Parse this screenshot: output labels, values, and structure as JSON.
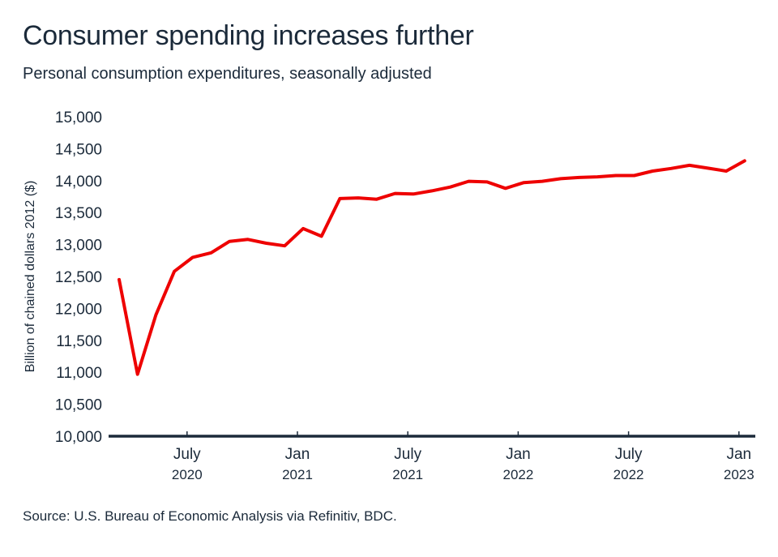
{
  "header": {
    "title": "Consumer spending increases further",
    "subtitle": "Personal consumption expenditures, seasonally adjusted"
  },
  "footer": {
    "source": "Source: U.S. Bureau of Economic Analysis via Refinitiv, BDC."
  },
  "colors": {
    "line": "#ee0000",
    "axis": "#1b2a3a",
    "text": "#1b2a3a"
  },
  "chart_data": {
    "type": "line",
    "title": "Consumer spending increases further",
    "subtitle": "Personal consumption expenditures, seasonally adjusted",
    "xlabel": "",
    "ylabel": "Billion of chained dollars 2012 ($)",
    "ylim": [
      10000,
      15000
    ],
    "yticks": [
      10000,
      10500,
      11000,
      11500,
      12000,
      12500,
      13000,
      13500,
      14000,
      14500,
      15000
    ],
    "ytick_labels": [
      "10,000",
      "10,500",
      "11,000",
      "11,500",
      "12,000",
      "12,500",
      "13,000",
      "13,500",
      "14,000",
      "14,500",
      "15,000"
    ],
    "xticks": [
      {
        "index": 4,
        "month": "July",
        "year": "2020"
      },
      {
        "index": 10,
        "month": "Jan",
        "year": "2021"
      },
      {
        "index": 16,
        "month": "July",
        "year": "2021"
      },
      {
        "index": 22,
        "month": "Jan",
        "year": "2022"
      },
      {
        "index": 28,
        "month": "July",
        "year": "2022"
      },
      {
        "index": 34,
        "month": "Jan",
        "year": "2023"
      }
    ],
    "grid": false,
    "legend": "none",
    "x": [
      "2020-03",
      "2020-04",
      "2020-05",
      "2020-06",
      "2020-07",
      "2020-08",
      "2020-09",
      "2020-10",
      "2020-11",
      "2020-12",
      "2021-01",
      "2021-02",
      "2021-03",
      "2021-04",
      "2021-05",
      "2021-06",
      "2021-07",
      "2021-08",
      "2021-09",
      "2021-10",
      "2021-11",
      "2021-12",
      "2022-01",
      "2022-02",
      "2022-03",
      "2022-04",
      "2022-05",
      "2022-06",
      "2022-07",
      "2022-08",
      "2022-09",
      "2022-10",
      "2022-11",
      "2022-12",
      "2023-01"
    ],
    "series": [
      {
        "name": "Personal consumption expenditures",
        "values": [
          12450,
          10970,
          11900,
          12580,
          12800,
          12870,
          13050,
          13080,
          13020,
          12980,
          13250,
          13130,
          13720,
          13730,
          13710,
          13800,
          13790,
          13840,
          13900,
          13990,
          13980,
          13880,
          13970,
          13990,
          14030,
          14050,
          14060,
          14080,
          14080,
          14150,
          14190,
          14240,
          14195,
          14150,
          14310
        ]
      }
    ]
  }
}
